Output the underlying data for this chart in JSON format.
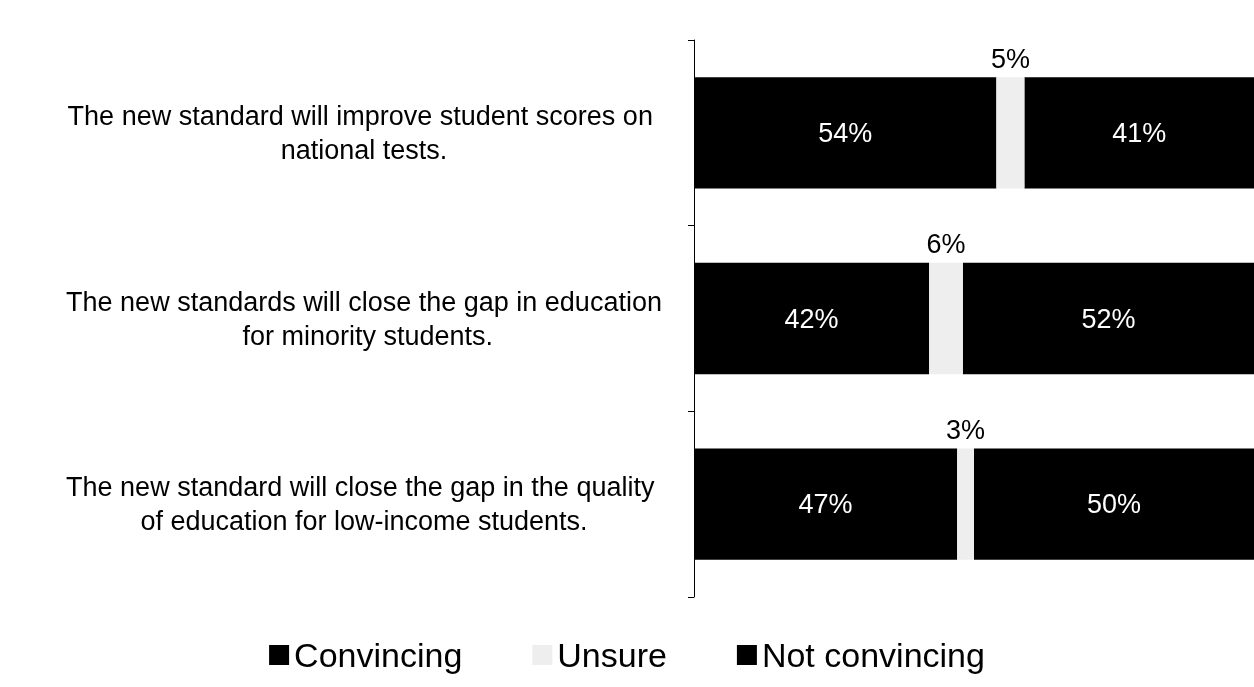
{
  "chart_data": {
    "type": "bar",
    "orientation": "horizontal",
    "stacked": true,
    "legend": "bottom",
    "categories": [
      "The new standard will improve student scores on national tests.",
      "The new standards will close the gap in education for minority students.",
      "The new standard will close the gap in the quality of education for low-income students."
    ],
    "series": [
      {
        "name": "Convincing",
        "color": "#000000",
        "values": [
          54,
          42,
          47
        ],
        "value_labels": [
          "54%",
          "42%",
          "47%"
        ]
      },
      {
        "name": "Unsure",
        "color": "#eeeeee",
        "values": [
          5,
          6,
          3
        ],
        "value_labels": [
          "5%",
          "6%",
          "3%"
        ]
      },
      {
        "name": "Not convincing",
        "color": "#000000",
        "values": [
          41,
          52,
          50
        ],
        "value_labels": [
          "41%",
          "52%",
          "50%"
        ]
      }
    ]
  }
}
